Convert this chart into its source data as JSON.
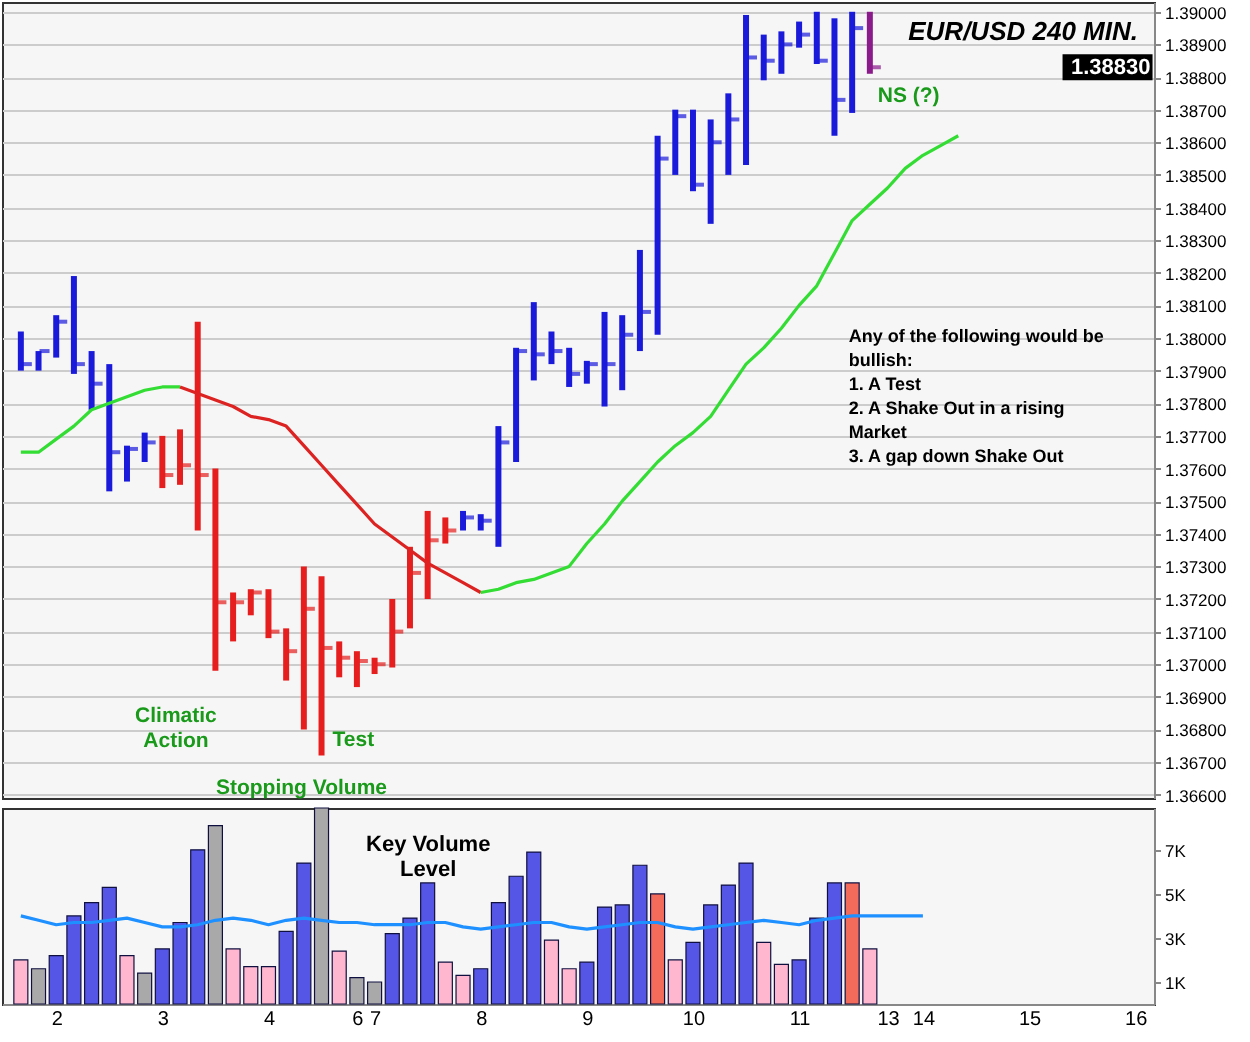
{
  "chart_data": [
    {
      "type": "bar",
      "title": "EUR/USD 240 MIN.",
      "categories": [
        null,
        null,
        "2",
        null,
        null,
        null,
        null,
        null,
        "3",
        null,
        null,
        null,
        null,
        null,
        "4",
        null,
        null,
        null,
        null,
        "6",
        "7",
        null,
        null,
        null,
        null,
        null,
        "8",
        null,
        null,
        null,
        null,
        null,
        "9",
        null,
        null,
        null,
        null,
        null,
        "10",
        null,
        null,
        null,
        null,
        null,
        "11",
        null,
        null,
        null,
        null,
        "13",
        null,
        "14",
        null,
        null,
        null,
        null,
        null,
        "15",
        null,
        null,
        null,
        null,
        null,
        "16"
      ],
      "series": [
        {
          "type": "bar",
          "base": [
            1.379,
            1.379,
            1.3794,
            1.3789,
            1.3778,
            1.3753,
            1.3756,
            1.3762,
            1.3754,
            1.3755,
            1.3741,
            1.3698,
            1.3707,
            1.3715,
            1.3708,
            1.3695,
            1.368,
            1.3672,
            1.3696,
            1.3693,
            1.3697,
            1.3699,
            1.3711,
            1.372,
            1.3737,
            1.3741,
            1.3741,
            1.3736,
            1.3762,
            1.3787,
            1.3792,
            1.3785,
            1.3786,
            1.3779,
            1.3784,
            1.3796,
            1.3801,
            1.385,
            1.3845,
            1.3835,
            1.385,
            1.3853,
            1.3879,
            1.3881,
            1.3889,
            1.3884,
            1.3862,
            1.3869,
            1.3881,
            null,
            null,
            null,
            null,
            null,
            null,
            null,
            null,
            null,
            null,
            null,
            null,
            null,
            null,
            null
          ],
          "values": [
            0.0012,
            0.0006,
            0.0013,
            0.003,
            0.0018,
            0.0039,
            0.0011,
            0.0009,
            0.0016,
            0.0017,
            0.0064,
            0.0062,
            0.0015,
            0.0008,
            0.0015,
            0.0016,
            0.005,
            0.0055,
            0.0011,
            0.0011,
            0.0005,
            0.0021,
            0.0025,
            0.0027,
            0.0008,
            0.0006,
            0.0005,
            0.0037,
            0.0035,
            0.0024,
            0.001,
            0.0012,
            0.0007,
            0.0029,
            0.0023,
            0.0031,
            0.0061,
            0.002,
            0.0025,
            0.0032,
            0.0025,
            0.0046,
            0.0014,
            0.0013,
            0.0008,
            0.0016,
            0.0036,
            0.0031,
            0.0019,
            null,
            null,
            null,
            null,
            null,
            null,
            null,
            null,
            null,
            null,
            null,
            null,
            null,
            null,
            null
          ],
          "colors": [
            "#1a1adb",
            "#1a1adb",
            "#1a1adb",
            "#1a1adb",
            "#1a1adb",
            "#1a1adb",
            "#1a1adb",
            "#1a1adb",
            "#e61e1e",
            "#e61e1e",
            "#e61e1e",
            "#e61e1e",
            "#e61e1e",
            "#e61e1e",
            "#e61e1e",
            "#e61e1e",
            "#e61e1e",
            "#e61e1e",
            "#e61e1e",
            "#e61e1e",
            "#e61e1e",
            "#e61e1e",
            "#e61e1e",
            "#e61e1e",
            "#e61e1e",
            "#1a1adb",
            "#1a1adb",
            "#1a1adb",
            "#1a1adb",
            "#1a1adb",
            "#1a1adb",
            "#1a1adb",
            "#1a1adb",
            "#1a1adb",
            "#1a1adb",
            "#1a1adb",
            "#1a1adb",
            "#1a1adb",
            "#1a1adb",
            "#1a1adb",
            "#1a1adb",
            "#1a1adb",
            "#1a1adb",
            "#1a1adb",
            "#1a1adb",
            "#1a1adb",
            "#1a1adb",
            "#1a1adb",
            "#8b1a8b",
            null,
            null,
            null,
            null,
            null,
            null,
            null,
            null,
            null,
            null,
            null,
            null,
            null,
            null,
            null
          ]
        },
        {
          "type": "scatter",
          "values": [
            1.3792,
            1.3796,
            1.3805,
            1.3792,
            1.3786,
            1.3765,
            1.3766,
            1.3768,
            1.3758,
            1.3761,
            1.3758,
            1.3719,
            1.3719,
            1.3722,
            1.371,
            1.3704,
            1.3717,
            1.3705,
            1.3702,
            1.3701,
            1.37,
            1.371,
            1.3728,
            1.3738,
            1.3741,
            1.3745,
            1.3744,
            1.3768,
            1.3796,
            1.3795,
            1.3796,
            1.3789,
            1.3792,
            1.3792,
            1.3801,
            1.3808,
            1.3855,
            1.3868,
            1.3847,
            1.386,
            1.3867,
            1.3886,
            1.3885,
            1.389,
            1.3893,
            1.3885,
            1.3873,
            1.3895,
            1.3883,
            null,
            null,
            null,
            null,
            null,
            null,
            null,
            null,
            null,
            null,
            null,
            null,
            null,
            null,
            null
          ],
          "colors": [
            "#1a1adb",
            "#1a1adb",
            "#1a1adb",
            "#1a1adb",
            "#1a1adb",
            "#1a1adb",
            "#1a1adb",
            "#1a1adb",
            "#e61e1e",
            "#e61e1e",
            "#e61e1e",
            "#e61e1e",
            "#e61e1e",
            "#e61e1e",
            "#e61e1e",
            "#e61e1e",
            "#e61e1e",
            "#e61e1e",
            "#e61e1e",
            "#e61e1e",
            "#e61e1e",
            "#e61e1e",
            "#e61e1e",
            "#e61e1e",
            "#e61e1e",
            "#1a1adb",
            "#1a1adb",
            "#1a1adb",
            "#1a1adb",
            "#1a1adb",
            "#1a1adb",
            "#1a1adb",
            "#1a1adb",
            "#1a1adb",
            "#1a1adb",
            "#1a1adb",
            "#1a1adb",
            "#1a1adb",
            "#1a1adb",
            "#1a1adb",
            "#1a1adb",
            "#1a1adb",
            "#1a1adb",
            "#1a1adb",
            "#1a1adb",
            "#1a1adb",
            "#1a1adb",
            "#1a1adb",
            "#8b1a8b",
            null,
            null,
            null,
            null,
            null,
            null,
            null,
            null,
            null,
            null,
            null,
            null,
            null,
            null,
            null
          ]
        },
        {
          "type": "line",
          "color": "#33dd33",
          "values": [
            1.3765,
            1.3765,
            1.3769,
            1.3773,
            1.3778,
            1.378,
            1.3782,
            1.3784,
            1.3785,
            1.3785,
            null,
            null,
            null,
            null,
            null,
            null,
            null,
            null,
            null,
            null,
            null,
            null,
            null,
            null,
            null,
            null,
            null,
            null,
            null,
            null,
            null,
            null,
            null,
            null,
            null,
            null,
            null,
            null,
            null,
            null,
            null,
            null,
            null,
            null,
            null,
            null,
            null,
            null,
            null,
            null,
            null,
            null,
            null,
            null,
            null,
            null,
            null,
            null,
            null,
            null,
            null,
            null,
            null,
            null
          ]
        },
        {
          "type": "line",
          "color": "#dd2222",
          "values": [
            null,
            null,
            null,
            null,
            null,
            null,
            null,
            null,
            null,
            1.3785,
            1.3783,
            1.3781,
            1.3779,
            1.3776,
            1.3775,
            1.3773,
            1.3767,
            1.3761,
            1.3755,
            1.3749,
            1.3743,
            1.3739,
            1.3735,
            1.3731,
            1.3728,
            1.3725,
            1.3722,
            null,
            null,
            null,
            null,
            null,
            null,
            null,
            null,
            null,
            null,
            null,
            null,
            null,
            null,
            null,
            null,
            null,
            null,
            null,
            null,
            null,
            null,
            null,
            null,
            null,
            null,
            null,
            null,
            null,
            null,
            null,
            null,
            null,
            null,
            null,
            null,
            null
          ]
        },
        {
          "type": "line",
          "color": "#33dd33",
          "values": [
            null,
            null,
            null,
            null,
            null,
            null,
            null,
            null,
            null,
            null,
            null,
            null,
            null,
            null,
            null,
            null,
            null,
            null,
            null,
            null,
            null,
            null,
            null,
            null,
            null,
            null,
            1.3722,
            1.3723,
            1.3725,
            1.3726,
            1.3728,
            1.373,
            1.3737,
            1.3743,
            1.375,
            1.3756,
            1.3762,
            1.3767,
            1.3771,
            1.3776,
            1.3784,
            1.3792,
            1.3797,
            1.3803,
            1.381,
            1.3816,
            1.3826,
            1.3836,
            1.3841,
            1.3846,
            1.3852,
            1.3856,
            1.3859,
            1.3862,
            null,
            null,
            null,
            null,
            null,
            null,
            null,
            null,
            null,
            null
          ]
        }
      ],
      "ylim": [
        1.3659,
        1.3903
      ],
      "yticks": [
        {
          "value": 1.366,
          "label": "1.36600"
        },
        {
          "value": 1.367,
          "label": "1.36700"
        },
        {
          "value": 1.368,
          "label": "1.36800"
        },
        {
          "value": 1.369,
          "label": "1.36900"
        },
        {
          "value": 1.37,
          "label": "1.37000"
        },
        {
          "value": 1.371,
          "label": "1.37100"
        },
        {
          "value": 1.372,
          "label": "1.37200"
        },
        {
          "value": 1.373,
          "label": "1.37300"
        },
        {
          "value": 1.374,
          "label": "1.37400"
        },
        {
          "value": 1.375,
          "label": "1.37500"
        },
        {
          "value": 1.376,
          "label": "1.37600"
        },
        {
          "value": 1.377,
          "label": "1.37700"
        },
        {
          "value": 1.378,
          "label": "1.37800"
        },
        {
          "value": 1.379,
          "label": "1.37900"
        },
        {
          "value": 1.38,
          "label": "1.38000"
        },
        {
          "value": 1.381,
          "label": "1.38100"
        },
        {
          "value": 1.382,
          "label": "1.38200"
        },
        {
          "value": 1.383,
          "label": "1.38300"
        },
        {
          "value": 1.384,
          "label": "1.38400"
        },
        {
          "value": 1.385,
          "label": "1.38500"
        },
        {
          "value": 1.386,
          "label": "1.38600"
        },
        {
          "value": 1.387,
          "label": "1.38700"
        },
        {
          "value": 1.388,
          "label": "1.38800"
        },
        {
          "value": 1.389,
          "label": "1.38900"
        },
        {
          "value": 1.39,
          "label": "1.39000"
        }
      ],
      "grid": "y",
      "tick_labels": "y",
      "annotations": [
        "Climatic\nAction",
        "Stopping Volume",
        "Test",
        "NS (?)",
        "Any of the following would be\nbullish:\n\n1. A Test\n2. A Shake Out in a rising\nMarket\n3. A gap down Shake Out",
        "1.38830"
      ]
    },
    {
      "type": "bar",
      "categories": [
        null,
        null,
        "2",
        null,
        null,
        null,
        null,
        null,
        "3",
        null,
        null,
        null,
        null,
        null,
        "4",
        null,
        null,
        null,
        null,
        "6",
        "7",
        null,
        null,
        null,
        null,
        null,
        "8",
        null,
        null,
        null,
        null,
        null,
        "9",
        null,
        null,
        null,
        null,
        null,
        "10",
        null,
        null,
        null,
        null,
        null,
        "11",
        null,
        null,
        null,
        null,
        "13",
        null,
        "14",
        null,
        null,
        null,
        null,
        null,
        "15",
        null,
        null,
        null,
        null,
        null,
        "16"
      ],
      "series": [
        {
          "type": "bar",
          "values": [
            2000,
            1600,
            2200,
            4000,
            4600,
            5300,
            2200,
            1400,
            2500,
            3700,
            7000,
            8100,
            2500,
            1700,
            1700,
            3300,
            6400,
            8900,
            2400,
            1200,
            1000,
            3200,
            3900,
            5500,
            1900,
            1300,
            1600,
            4600,
            5800,
            6900,
            2900,
            1600,
            1900,
            4400,
            4500,
            6300,
            5000,
            2000,
            2800,
            4500,
            5400,
            6400,
            2800,
            1800,
            2000,
            3900,
            5500,
            5500,
            2500,
            null,
            null,
            null,
            null,
            null,
            null,
            null,
            null,
            null,
            null,
            null,
            null,
            null,
            null,
            null
          ],
          "colors": [
            "#ffb6cf",
            "#a9a9a9",
            "#5555e6",
            "#5555e6",
            "#5555e6",
            "#5555e6",
            "#ffb6cf",
            "#a9a9a9",
            "#5555e6",
            "#5555e6",
            "#5555e6",
            "#a9a9a9",
            "#ffb6cf",
            "#ffb6cf",
            "#ffb6cf",
            "#5555e6",
            "#5555e6",
            "#a9a9a9",
            "#ffb6cf",
            "#a9a9a9",
            "#a9a9a9",
            "#5555e6",
            "#5555e6",
            "#5555e6",
            "#ffb6cf",
            "#ffb6cf",
            "#5555e6",
            "#5555e6",
            "#5555e6",
            "#5555e6",
            "#ffb6cf",
            "#ffb6cf",
            "#5555e6",
            "#5555e6",
            "#5555e6",
            "#5555e6",
            "#f26b5b",
            "#ffb6cf",
            "#5555e6",
            "#5555e6",
            "#5555e6",
            "#5555e6",
            "#ffb6cf",
            "#ffb6cf",
            "#5555e6",
            "#5555e6",
            "#5555e6",
            "#f26b5b",
            "#ffb6cf",
            null,
            null,
            null,
            null,
            null,
            null,
            null,
            null,
            null,
            null,
            null,
            null,
            null,
            null,
            null
          ]
        },
        {
          "type": "line",
          "color": "#1e90ff",
          "values": [
            4000,
            3800,
            3600,
            3700,
            3700,
            3800,
            3900,
            3700,
            3500,
            3500,
            3600,
            3800,
            3900,
            3800,
            3600,
            3800,
            3900,
            3800,
            3700,
            3700,
            3600,
            3600,
            3600,
            3700,
            3700,
            3500,
            3400,
            3500,
            3600,
            3700,
            3700,
            3500,
            3400,
            3500,
            3600,
            3700,
            3700,
            3500,
            3400,
            3500,
            3600,
            3700,
            3800,
            3700,
            3600,
            3800,
            3900,
            4000,
            4000,
            4000,
            4000,
            4000,
            null,
            null,
            null,
            null,
            null,
            null,
            null,
            null,
            null,
            null,
            null,
            null
          ]
        }
      ],
      "ylim": [
        0,
        8900
      ],
      "yticks": [
        {
          "value": 1000,
          "label": "1K"
        },
        {
          "value": 3000,
          "label": "3K"
        },
        {
          "value": 5000,
          "label": "5K"
        },
        {
          "value": 7000,
          "label": "7K"
        }
      ],
      "annotations": [
        "Key Volume\nLevel"
      ]
    }
  ]
}
